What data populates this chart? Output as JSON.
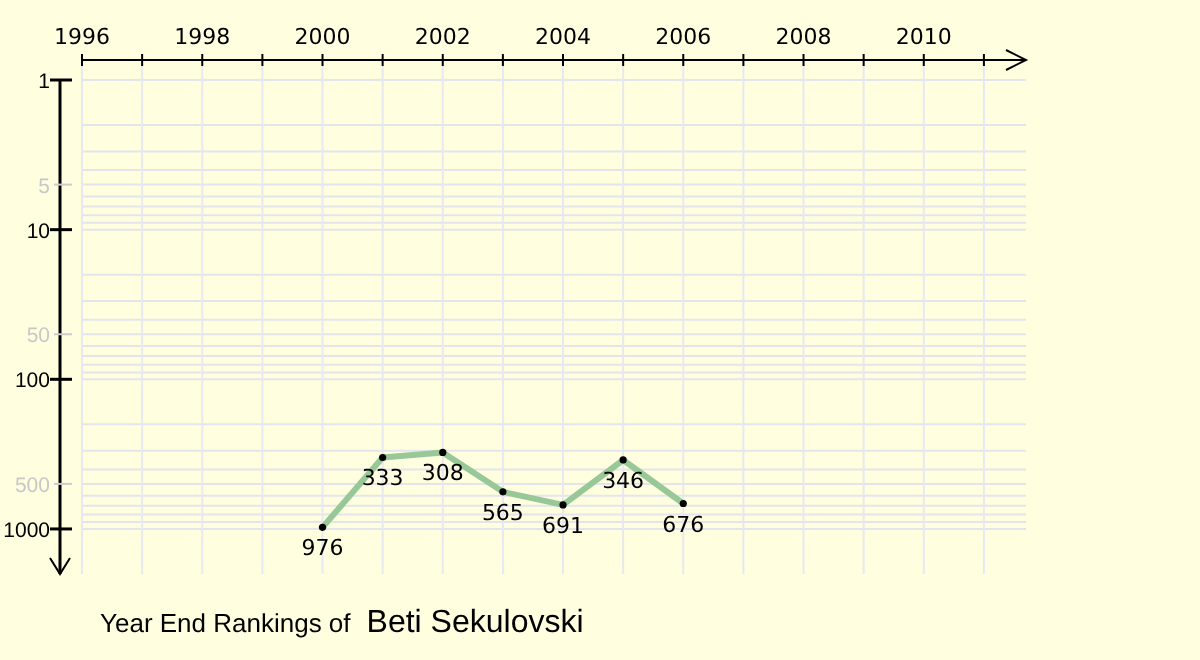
{
  "chart_data": {
    "type": "line",
    "title": "Year End Rankings of",
    "subtitle": "Beti Sekulovski",
    "x": [
      2000,
      2001,
      2002,
      2003,
      2004,
      2005,
      2006
    ],
    "series": [
      {
        "color": "#98c898",
        "values": [
          976,
          333,
          308,
          565,
          691,
          346,
          676
        ]
      }
    ],
    "data_labels": true,
    "marker": "circle",
    "log": "y",
    "grid": true,
    "xlim": [
      1996,
      2011.7
    ],
    "xticks": [
      1996,
      {
        "value": 1997,
        "label": null
      },
      1998,
      {
        "value": 1999,
        "label": null
      },
      2000,
      {
        "value": 2001,
        "label": null
      },
      2002,
      {
        "value": 2003,
        "label": null
      },
      2004,
      {
        "value": 2005,
        "label": null
      },
      2006,
      {
        "value": 2007,
        "label": null
      },
      2008,
      {
        "value": 2009,
        "label": null
      },
      2010,
      {
        "value": 2011,
        "label": null
      }
    ],
    "ylim": [
      2000,
      1
    ],
    "yticks": [
      1,
      {
        "value": 2,
        "label": null
      },
      {
        "value": 3,
        "label": null
      },
      {
        "value": 4,
        "label": null
      },
      5,
      {
        "value": 6,
        "label": null
      },
      {
        "value": 7,
        "label": null
      },
      {
        "value": 8,
        "label": null
      },
      {
        "value": 9,
        "label": null
      },
      10,
      {
        "value": 20,
        "label": null
      },
      {
        "value": 30,
        "label": null
      },
      {
        "value": 40,
        "label": null
      },
      50,
      {
        "value": 60,
        "label": null
      },
      {
        "value": 70,
        "label": null
      },
      {
        "value": 80,
        "label": null
      },
      {
        "value": 90,
        "label": null
      },
      100,
      {
        "value": 200,
        "label": null
      },
      {
        "value": 300,
        "label": null
      },
      {
        "value": 400,
        "label": null
      },
      500,
      {
        "value": 600,
        "label": null
      },
      {
        "value": 700,
        "label": null
      },
      {
        "value": 800,
        "label": null
      },
      {
        "value": 900,
        "label": null
      },
      1000
    ]
  }
}
